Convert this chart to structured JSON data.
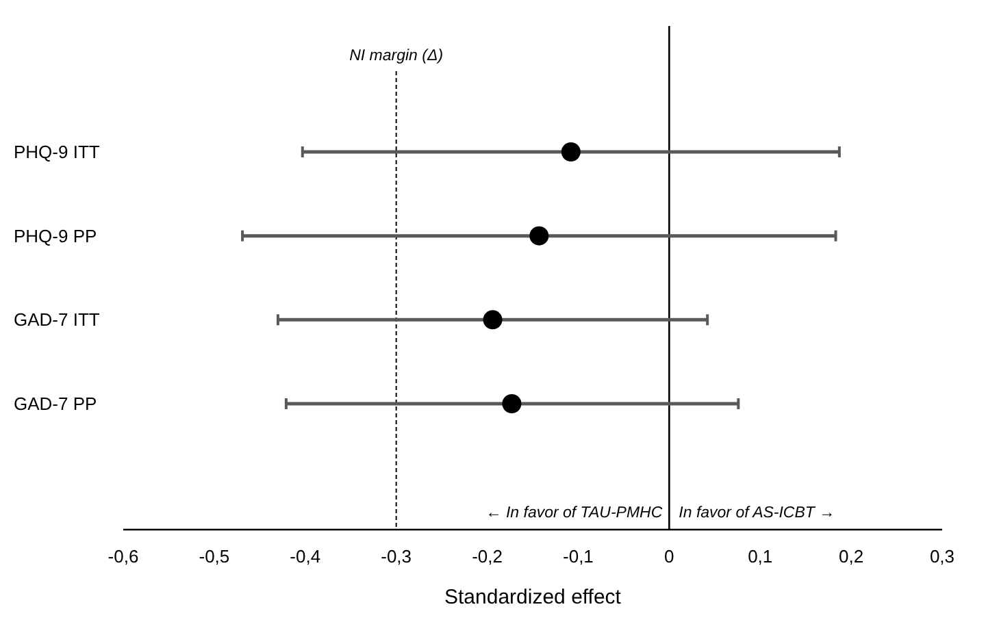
{
  "chart_data": {
    "type": "scatter",
    "orientation": "horizontal",
    "categories": [
      "PHQ-9 ITT",
      "PHQ-9 PP",
      "GAD-7 ITT",
      "GAD-7 PP"
    ],
    "values": [
      -0.108,
      -0.143,
      -0.194,
      -0.173
    ],
    "errors": [
      [
        -0.403,
        0.187
      ],
      [
        -0.469,
        0.183
      ],
      [
        -0.43,
        0.042
      ],
      [
        -0.421,
        0.076
      ]
    ],
    "color": "#000000",
    "marker": "circle",
    "grid": false,
    "xlabel": "Standardized effect",
    "xlim": [
      -0.6,
      0.3
    ],
    "xticks": [
      {
        "value": -0.6,
        "label": "-0,6"
      },
      {
        "value": -0.5,
        "label": "-0,5"
      },
      {
        "value": -0.4,
        "label": "-0,4"
      },
      {
        "value": -0.3,
        "label": "-0,3"
      },
      {
        "value": -0.2,
        "label": "-0,2"
      },
      {
        "value": -0.1,
        "label": "-0,1"
      },
      0,
      {
        "value": 0.1,
        "label": "0,1"
      },
      {
        "value": 0.2,
        "label": "0,2"
      },
      {
        "value": 0.3,
        "label": "0,3"
      }
    ],
    "ref_lines": [
      {
        "axis": "x",
        "value": -0.3,
        "label": "NI margin (Δ)",
        "line_style": "dashed"
      },
      {
        "axis": "x",
        "value": 0,
        "line_style": "solid"
      }
    ],
    "annotations": [
      "← In favor of TAU-PMHC",
      "In favor of AS-ICBT →"
    ]
  }
}
